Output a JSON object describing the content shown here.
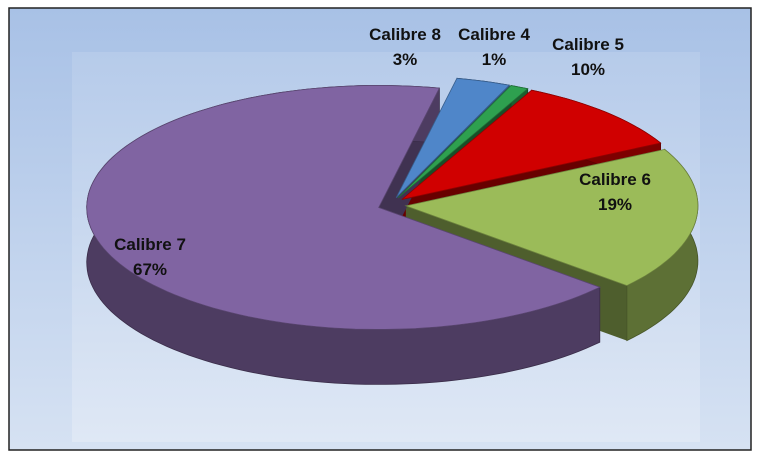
{
  "chart_data": {
    "type": "pie3d",
    "categories": [
      "Calibre 8",
      "Calibre 4",
      "Calibre 5",
      "Calibre 6",
      "Calibre 7"
    ],
    "values": [
      3,
      1,
      10,
      19,
      67
    ],
    "value_labels": [
      "3%",
      "1%",
      "10%",
      "19%",
      "67%"
    ],
    "colors": [
      "#4f86c9",
      "#2ea04f",
      "#d00000",
      "#9bbb59",
      "#8064a2"
    ]
  }
}
